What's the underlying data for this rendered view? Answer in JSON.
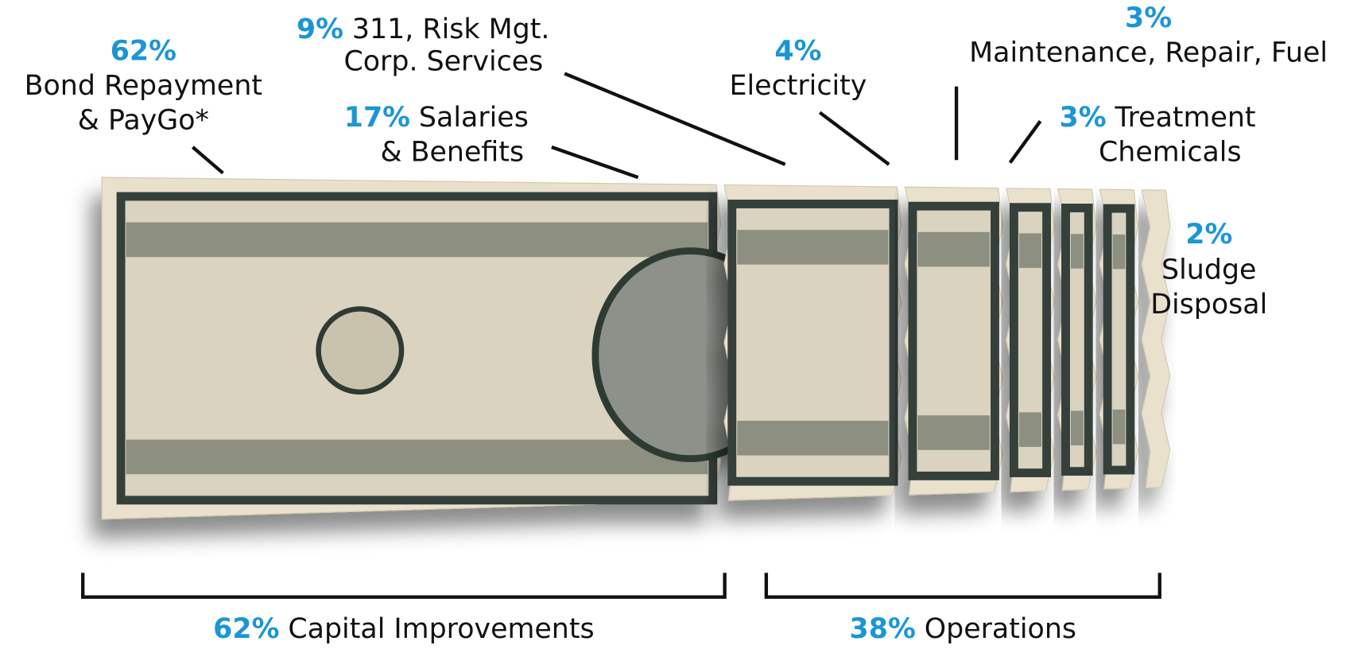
{
  "chart_data": {
    "type": "torn-bill",
    "categories": [
      [
        "Bond Repayment",
        "& PayGo*"
      ],
      [
        "Salaries",
        "& Benefits"
      ],
      [
        "311, Risk Mgt.",
        "Corp. Services"
      ],
      [
        "Electricity"
      ],
      [
        "Maintenance, Repair, Fuel"
      ],
      [
        "Treatment",
        "Chemicals"
      ],
      [
        "Sludge",
        "Disposal"
      ]
    ],
    "values": [
      62,
      17,
      9,
      4,
      3,
      3,
      2
    ],
    "value_labels": [
      "62%",
      "17%",
      "9%",
      "4%",
      "3%",
      "3%",
      "2%"
    ],
    "groups": [
      {
        "name": "Capital Improvements",
        "value": 62,
        "value_label": "62%"
      },
      {
        "name": "Operations",
        "value": 38,
        "value_label": "38%"
      }
    ],
    "color": "#1b96d4"
  }
}
